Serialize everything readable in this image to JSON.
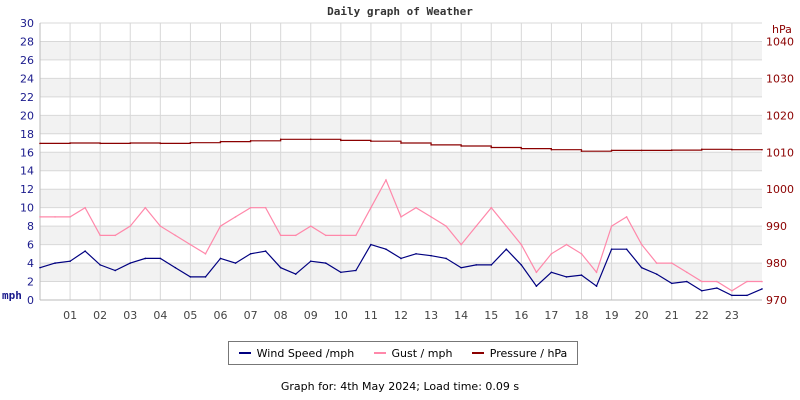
{
  "chart_data": {
    "type": "line",
    "title": "Daily graph of Weather",
    "x_tick_labels": [
      "01",
      "02",
      "03",
      "04",
      "05",
      "06",
      "07",
      "08",
      "09",
      "10",
      "11",
      "12",
      "13",
      "14",
      "15",
      "16",
      "17",
      "18",
      "19",
      "20",
      "21",
      "22",
      "23"
    ],
    "x_unit": "hour",
    "xlim": [
      0,
      24
    ],
    "left_axis": {
      "label": "mph",
      "ylim": [
        0,
        30
      ],
      "ticks": [
        0,
        2,
        4,
        6,
        8,
        10,
        12,
        14,
        16,
        18,
        20,
        22,
        24,
        26,
        28,
        30
      ],
      "color": "#1a1a8c"
    },
    "right_axis": {
      "label": "hPa",
      "ylim": [
        970,
        1045
      ],
      "ticks": [
        970,
        980,
        990,
        1000,
        1010,
        1020,
        1030,
        1040
      ],
      "color": "#8b0000"
    },
    "grid": true,
    "legend_placement": "bottom",
    "series": [
      {
        "name": "Wind Speed /mph",
        "axis": "left",
        "color": "#000080",
        "x": [
          0,
          0.5,
          1,
          1.5,
          2,
          2.5,
          3,
          3.5,
          4,
          4.5,
          5,
          5.5,
          6,
          6.5,
          7,
          7.5,
          8,
          8.5,
          9,
          9.5,
          10,
          10.5,
          11,
          11.5,
          12,
          12.5,
          13,
          13.5,
          14,
          14.5,
          15,
          15.5,
          16,
          16.5,
          17,
          17.5,
          18,
          18.5,
          19,
          19.5,
          20,
          20.5,
          21,
          21.5,
          22,
          22.5,
          23,
          23.5,
          24
        ],
        "values": [
          3.5,
          4,
          4.2,
          5.3,
          3.8,
          3.2,
          4,
          4.5,
          4.5,
          3.5,
          2.5,
          2.5,
          4.5,
          4,
          5,
          5.3,
          3.5,
          2.8,
          4.2,
          4,
          3,
          3.2,
          6,
          5.5,
          4.5,
          5,
          4.8,
          4.5,
          3.5,
          3.8,
          3.8,
          5.5,
          3.8,
          1.5,
          3,
          2.5,
          2.7,
          1.5,
          5.5,
          5.5,
          3.5,
          2.8,
          1.8,
          2,
          1,
          1.3,
          0.5,
          0.5,
          1.2
        ]
      },
      {
        "name": "Gust / mph",
        "axis": "left",
        "color": "#ff88aa",
        "x": [
          0,
          0.5,
          1,
          1.5,
          2,
          2.5,
          3,
          3.5,
          4,
          4.5,
          5,
          5.5,
          6,
          6.5,
          7,
          7.5,
          8,
          8.5,
          9,
          9.5,
          10,
          10.5,
          11,
          11.5,
          12,
          12.5,
          13,
          13.5,
          14,
          14.5,
          15,
          15.5,
          16,
          16.5,
          17,
          17.5,
          18,
          18.5,
          19,
          19.5,
          20,
          20.5,
          21,
          21.5,
          22,
          22.5,
          23,
          23.5,
          24
        ],
        "values": [
          9,
          9,
          9,
          10,
          7,
          7,
          8,
          10,
          8,
          7,
          6,
          5,
          8,
          9,
          10,
          10,
          7,
          7,
          8,
          7,
          7,
          7,
          10,
          13,
          9,
          10,
          9,
          8,
          6,
          8,
          10,
          8,
          6,
          3,
          5,
          6,
          5,
          3,
          8,
          9,
          6,
          4,
          4,
          3,
          2,
          2,
          1,
          2,
          2
        ]
      },
      {
        "name": "Pressure / hPa",
        "axis": "right",
        "color": "#8b0000",
        "x": [
          0,
          1,
          2,
          3,
          4,
          5,
          6,
          7,
          8,
          9,
          10,
          11,
          12,
          13,
          14,
          15,
          16,
          17,
          18,
          19,
          20,
          21,
          22,
          23,
          24
        ],
        "values": [
          1012.4,
          1012.5,
          1012.4,
          1012.5,
          1012.4,
          1012.6,
          1012.9,
          1013.1,
          1013.5,
          1013.5,
          1013.2,
          1013,
          1012.5,
          1012,
          1011.7,
          1011.3,
          1011,
          1010.7,
          1010.3,
          1010.5,
          1010.5,
          1010.6,
          1010.8,
          1010.7,
          1010.7
        ]
      }
    ]
  },
  "footer": "Graph for: 4th May 2024; Load time: 0.09 s"
}
